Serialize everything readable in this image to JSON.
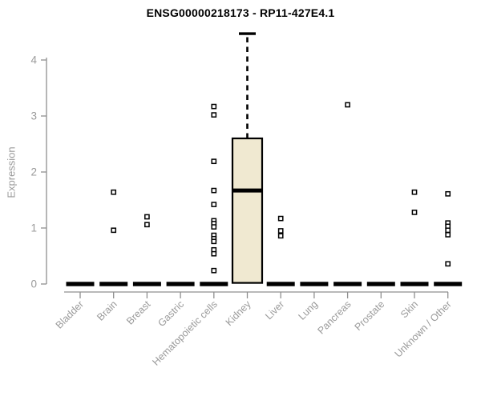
{
  "chart_data": {
    "type": "boxplot",
    "title": "ENSG00000218173 - RP11-427E4.1",
    "xlabel": "",
    "ylabel": "Expression",
    "ylim": [
      0,
      4.6
    ],
    "yticks": [
      0,
      1,
      2,
      3,
      4
    ],
    "grid": false,
    "legend": "none",
    "categories": [
      "Bladder",
      "Brain",
      "Breast",
      "Gastric",
      "Hematopoietic cells",
      "Kidney",
      "Liver",
      "Lung",
      "Pancreas",
      "Prostate",
      "Skin",
      "Unknown / Other"
    ],
    "boxes": [
      {
        "category": "Bladder",
        "q1": 0,
        "median": 0,
        "q3": 0,
        "whisker_low": 0,
        "whisker_high": 0,
        "outliers": []
      },
      {
        "category": "Brain",
        "q1": 0,
        "median": 0,
        "q3": 0,
        "whisker_low": 0,
        "whisker_high": 0,
        "outliers": [
          1.64,
          0.96
        ]
      },
      {
        "category": "Breast",
        "q1": 0,
        "median": 0,
        "q3": 0,
        "whisker_low": 0,
        "whisker_high": 0,
        "outliers": [
          1.2,
          1.06
        ]
      },
      {
        "category": "Gastric",
        "q1": 0,
        "median": 0,
        "q3": 0,
        "whisker_low": 0,
        "whisker_high": 0,
        "outliers": []
      },
      {
        "category": "Hematopoietic cells",
        "q1": 0,
        "median": 0,
        "q3": 0,
        "whisker_low": 0,
        "whisker_high": 0,
        "outliers": [
          3.17,
          3.02,
          2.19,
          1.67,
          1.42,
          1.13,
          1.08,
          1.02,
          0.87,
          0.81,
          0.76,
          0.61,
          0.54,
          0.24
        ]
      },
      {
        "category": "Kidney",
        "q1": 0.02,
        "median": 1.67,
        "q3": 2.6,
        "whisker_low": 0.02,
        "whisker_high": 4.47,
        "outliers": []
      },
      {
        "category": "Liver",
        "q1": 0,
        "median": 0,
        "q3": 0,
        "whisker_low": 0,
        "whisker_high": 0,
        "outliers": [
          1.17,
          0.95,
          0.86
        ]
      },
      {
        "category": "Lung",
        "q1": 0,
        "median": 0,
        "q3": 0,
        "whisker_low": 0,
        "whisker_high": 0,
        "outliers": []
      },
      {
        "category": "Pancreas",
        "q1": 0,
        "median": 0,
        "q3": 0,
        "whisker_low": 0,
        "whisker_high": 0,
        "outliers": [
          3.2
        ]
      },
      {
        "category": "Prostate",
        "q1": 0,
        "median": 0,
        "q3": 0,
        "whisker_low": 0,
        "whisker_high": 0,
        "outliers": []
      },
      {
        "category": "Skin",
        "q1": 0,
        "median": 0,
        "q3": 0,
        "whisker_low": 0,
        "whisker_high": 0,
        "outliers": [
          1.64,
          1.28
        ]
      },
      {
        "category": "Unknown / Other",
        "q1": 0,
        "median": 0,
        "q3": 0,
        "whisker_low": 0,
        "whisker_high": 0,
        "outliers": [
          1.61,
          1.09,
          1.03,
          0.96,
          0.88,
          0.36
        ]
      }
    ],
    "colors": {
      "axis": "#8f8f8f",
      "tick_text": "#9a9a9a",
      "box_fill": "#f0e9d1",
      "box_stroke": "#000000",
      "data": "#000000",
      "background": "#ffffff"
    }
  }
}
